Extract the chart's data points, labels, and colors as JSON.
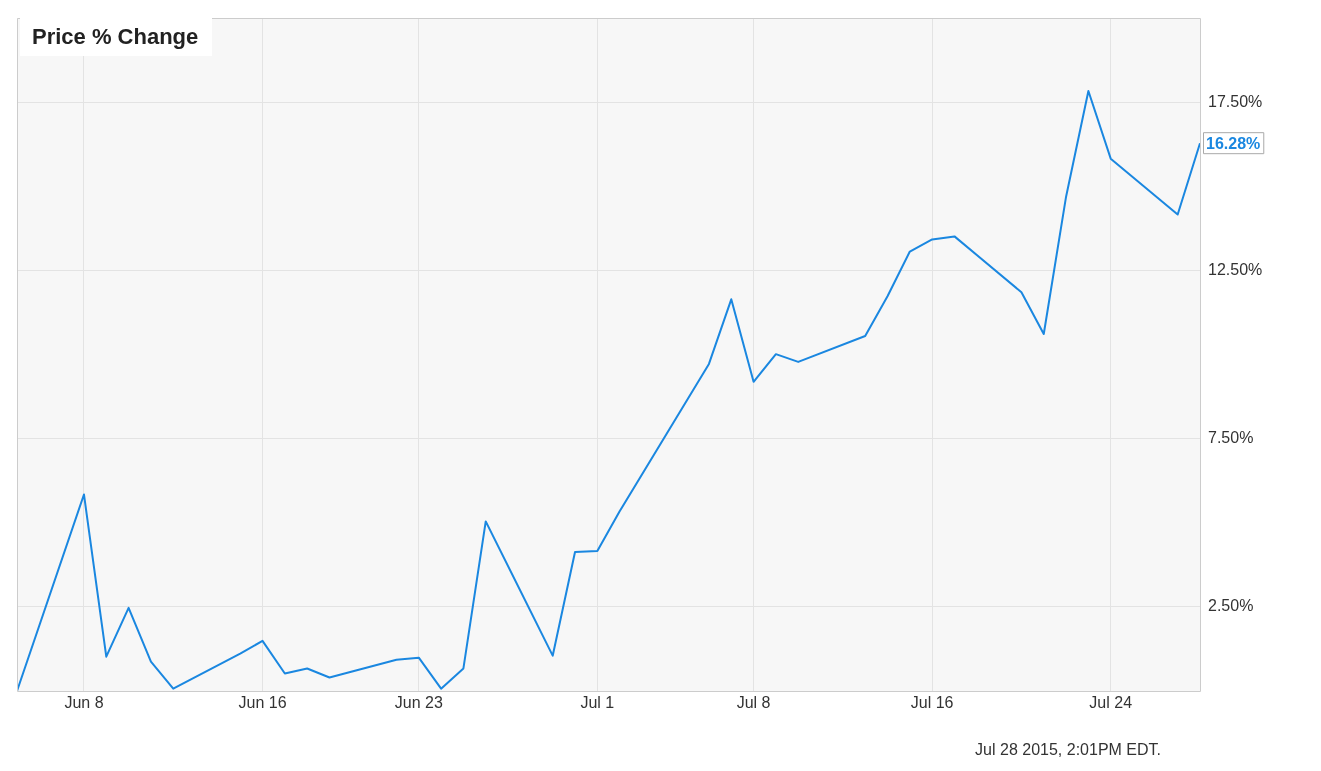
{
  "chart_data": {
    "type": "line",
    "title": "Price % Change",
    "x": [
      "2015-06-05",
      "2015-06-08",
      "2015-06-09",
      "2015-06-10",
      "2015-06-11",
      "2015-06-12",
      "2015-06-15",
      "2015-06-16",
      "2015-06-17",
      "2015-06-18",
      "2015-06-19",
      "2015-06-22",
      "2015-06-23",
      "2015-06-24",
      "2015-06-25",
      "2015-06-26",
      "2015-06-29",
      "2015-06-30",
      "2015-07-01",
      "2015-07-02",
      "2015-07-06",
      "2015-07-07",
      "2015-07-08",
      "2015-07-09",
      "2015-07-10",
      "2015-07-13",
      "2015-07-14",
      "2015-07-15",
      "2015-07-16",
      "2015-07-17",
      "2015-07-20",
      "2015-07-21",
      "2015-07-22",
      "2015-07-23",
      "2015-07-24",
      "2015-07-27",
      "2015-07-28"
    ],
    "series": [
      {
        "color": "#1a87e0",
        "values": [
          0,
          5.84,
          1.02,
          2.47,
          0.87,
          0.07,
          1.11,
          1.49,
          0.52,
          0.67,
          0.4,
          0.93,
          0.99,
          0.07,
          0.67,
          5.04,
          1.05,
          4.13,
          4.16,
          5.34,
          9.72,
          11.64,
          9.19,
          10.01,
          9.78,
          10.55,
          11.73,
          13.06,
          13.42,
          13.51,
          11.85,
          10.61,
          14.69,
          17.83,
          15.82,
          14.16,
          16.28
        ],
        "value_labels": [
          null,
          null,
          null,
          null,
          null,
          null,
          null,
          null,
          null,
          null,
          null,
          null,
          null,
          null,
          null,
          null,
          null,
          null,
          null,
          null,
          null,
          null,
          null,
          null,
          null,
          null,
          null,
          null,
          null,
          null,
          null,
          null,
          null,
          null,
          null,
          null,
          "16.28%"
        ]
      }
    ],
    "xlim": [
      "2015-06-05",
      "2015-07-28"
    ],
    "xticks": [
      {
        "value": "2015-06-08",
        "label": "Jun 8"
      },
      {
        "value": "2015-06-16",
        "label": "Jun 16"
      },
      {
        "value": "2015-06-23",
        "label": "Jun 23"
      },
      {
        "value": "2015-07-01",
        "label": "Jul 1"
      },
      {
        "value": "2015-07-08",
        "label": "Jul 8"
      },
      {
        "value": "2015-07-16",
        "label": "Jul 16"
      },
      {
        "value": "2015-07-24",
        "label": "Jul 24"
      }
    ],
    "ylim": [
      0,
      20
    ],
    "yticks": [
      {
        "value": 2.5,
        "label": "2.50%"
      },
      {
        "value": 7.5,
        "label": "7.50%"
      },
      {
        "value": 12.5,
        "label": "12.50%"
      },
      {
        "value": 17.5,
        "label": "17.50%"
      }
    ],
    "grid": true,
    "marker": "none",
    "annotations": [
      "Jul 28 2015, 2:01PM EDT."
    ]
  }
}
